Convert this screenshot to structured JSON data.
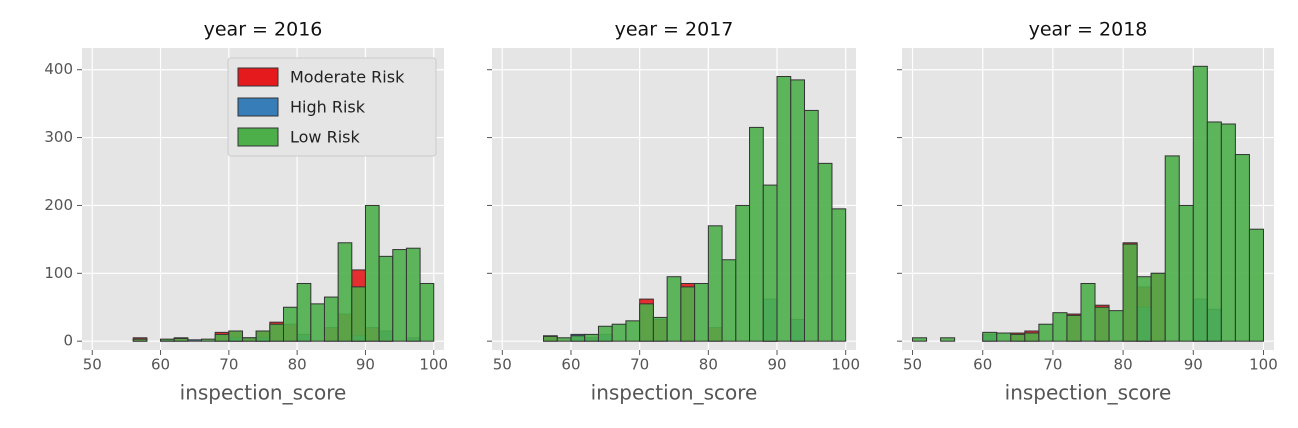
{
  "chart_data": [
    {
      "type": "histogram",
      "title": "year = 2016",
      "xlabel": "inspection_score",
      "bins": [
        50,
        52,
        54,
        56,
        58,
        60,
        62,
        64,
        66,
        68,
        70,
        72,
        74,
        76,
        78,
        80,
        82,
        84,
        86,
        88,
        90,
        92,
        94,
        96,
        98,
        100
      ],
      "xlim": [
        48.5,
        101.5
      ],
      "xticks": [
        50,
        60,
        70,
        80,
        90,
        100
      ],
      "ylim": [
        -13,
        432
      ],
      "yticks": [
        0,
        100,
        200,
        300,
        400
      ],
      "grid": true,
      "legend": "upper right",
      "series": [
        {
          "name": "Moderate Risk",
          "color": "#e41a1c",
          "values": [
            0,
            0,
            0,
            5,
            0,
            0,
            5,
            0,
            0,
            13,
            15,
            5,
            15,
            28,
            25,
            0,
            0,
            20,
            40,
            105,
            20,
            10,
            0,
            0,
            0
          ]
        },
        {
          "name": "High Risk",
          "color": "#377eb8",
          "values": [
            0,
            0,
            0,
            0,
            0,
            2,
            0,
            2,
            0,
            0,
            5,
            0,
            5,
            0,
            0,
            10,
            0,
            0,
            0,
            8,
            0,
            15,
            0,
            5,
            0
          ]
        },
        {
          "name": "Low Risk",
          "color": "#4daf4a",
          "values": [
            0,
            0,
            0,
            3,
            0,
            3,
            4,
            0,
            3,
            10,
            15,
            5,
            15,
            25,
            50,
            85,
            55,
            65,
            145,
            80,
            200,
            125,
            135,
            137,
            85
          ]
        }
      ]
    },
    {
      "type": "histogram",
      "title": "year = 2017",
      "xlabel": "inspection_score",
      "bins": [
        50,
        52,
        54,
        56,
        58,
        60,
        62,
        64,
        66,
        68,
        70,
        72,
        74,
        76,
        78,
        80,
        82,
        84,
        86,
        88,
        90,
        92,
        94,
        96,
        98,
        100
      ],
      "xlim": [
        48.5,
        101.5
      ],
      "xticks": [
        50,
        60,
        70,
        80,
        90,
        100
      ],
      "series": [
        {
          "color": "#e41a1c",
          "values": [
            0,
            0,
            0,
            8,
            0,
            0,
            0,
            0,
            0,
            0,
            62,
            32,
            0,
            85,
            0,
            20,
            0,
            0,
            0,
            30,
            0,
            0,
            0,
            0,
            0
          ]
        },
        {
          "color": "#377eb8",
          "values": [
            0,
            0,
            0,
            0,
            0,
            10,
            5,
            10,
            0,
            0,
            0,
            0,
            0,
            0,
            0,
            0,
            0,
            0,
            0,
            62,
            0,
            32,
            0,
            0,
            0
          ]
        },
        {
          "color": "#4daf4a",
          "values": [
            0,
            0,
            0,
            7,
            5,
            8,
            10,
            22,
            25,
            30,
            55,
            35,
            95,
            80,
            85,
            170,
            120,
            200,
            315,
            230,
            390,
            385,
            340,
            262,
            195
          ]
        }
      ]
    },
    {
      "type": "histogram",
      "title": "year = 2018",
      "xlabel": "inspection_score",
      "bins": [
        50,
        52,
        54,
        56,
        58,
        60,
        62,
        64,
        66,
        68,
        70,
        72,
        74,
        76,
        78,
        80,
        82,
        84,
        86,
        88,
        90,
        92,
        94,
        96,
        98,
        100
      ],
      "xlim": [
        48.5,
        101.5
      ],
      "xticks": [
        50,
        60,
        70,
        80,
        90,
        100
      ],
      "series": [
        {
          "color": "#e41a1c",
          "values": [
            0,
            0,
            0,
            0,
            0,
            0,
            0,
            12,
            15,
            0,
            0,
            40,
            0,
            53,
            0,
            145,
            80,
            100,
            0,
            0,
            0,
            0,
            0,
            0,
            0
          ]
        },
        {
          "color": "#377eb8",
          "values": [
            0,
            0,
            0,
            0,
            0,
            10,
            0,
            0,
            0,
            0,
            0,
            0,
            0,
            0,
            0,
            0,
            50,
            0,
            0,
            0,
            62,
            47,
            0,
            0,
            0
          ]
        },
        {
          "color": "#4daf4a",
          "values": [
            5,
            0,
            5,
            0,
            0,
            13,
            12,
            10,
            12,
            25,
            42,
            38,
            85,
            50,
            45,
            143,
            95,
            100,
            273,
            200,
            405,
            323,
            320,
            275,
            165
          ]
        }
      ]
    }
  ]
}
